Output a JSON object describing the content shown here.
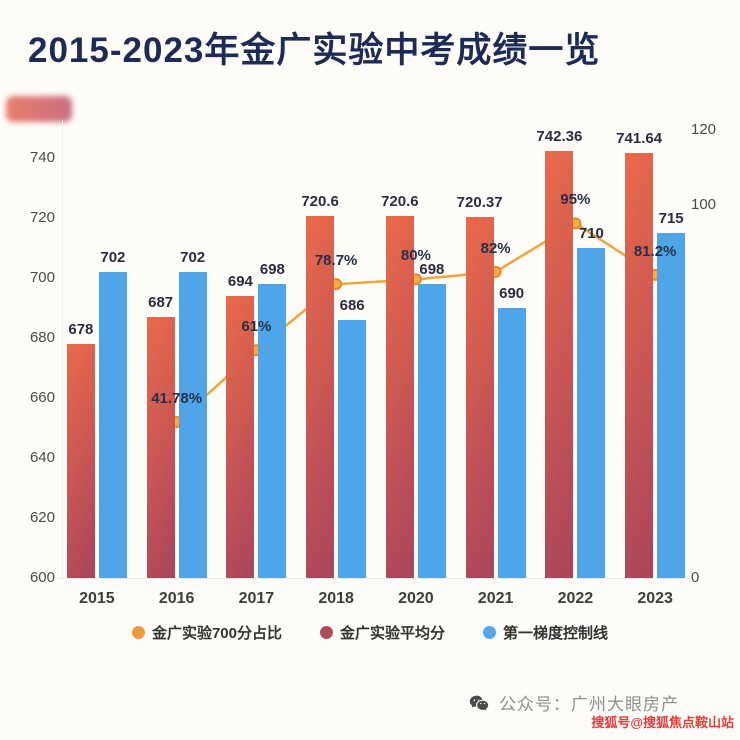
{
  "page": {
    "title": "2015-2023年金广实验中考成绩一览"
  },
  "chart_data": {
    "type": "bar+line",
    "title": "2015-2023年金广实验中考成绩一览",
    "categories": [
      "2015",
      "2016",
      "2017",
      "2018",
      "2020",
      "2021",
      "2022",
      "2023"
    ],
    "left_axis": {
      "min": 600,
      "max": 755,
      "ticks": [
        740,
        720,
        700,
        680,
        660,
        640,
        620,
        600
      ]
    },
    "right_axis": {
      "min": 0,
      "max": 120,
      "ticks_shown": [
        {
          "label": "120",
          "value": 120
        },
        {
          "label": "100",
          "value": 100
        },
        {
          "label": "0",
          "value": 0
        }
      ]
    },
    "grid": "off",
    "legend_position": "bottom",
    "series": [
      {
        "name": "金广实验平均分",
        "type": "bar",
        "slot": "left",
        "color_top": "#ea6a4b",
        "color_bottom": "#a8445c",
        "values": [
          678,
          687,
          694,
          720.6,
          720.6,
          720.37,
          742.36,
          741.64
        ],
        "labels": [
          "678",
          "687",
          "694",
          "720.6",
          "720.6",
          "720.37",
          "742.36",
          "741.64"
        ]
      },
      {
        "name": "第一梯度控制线",
        "type": "bar",
        "slot": "right",
        "color": "#4fa5e8",
        "values": [
          702,
          702,
          698,
          686,
          698,
          690,
          710,
          715
        ],
        "labels": [
          "702",
          "702",
          "698",
          "686",
          "698",
          "690",
          "710",
          "715"
        ]
      },
      {
        "name": "金广实验700分占比",
        "type": "line",
        "color": "#f0a43c",
        "point_fill": "#f6ae43",
        "point_stroke": "#e1882f",
        "values": [
          null,
          41.78,
          61,
          78.7,
          80,
          82,
          95,
          81.2
        ],
        "labels": [
          "",
          "41.78%",
          "61%",
          "78.7%",
          "80%",
          "82%",
          "95%",
          "81.2%"
        ]
      }
    ]
  },
  "legend": {
    "items": [
      {
        "label": "金广实验700分占比",
        "color": "#ec9a3e"
      },
      {
        "label": "金广实验平均分",
        "color": "#b14c59"
      },
      {
        "label": "第一梯度控制线",
        "color": "#55a8ea"
      }
    ]
  },
  "footer": {
    "account": "公众号：广州大眼房产"
  },
  "watermark": {
    "text": "搜狐号@搜狐焦点鞍山站",
    "color": "#e23d3d"
  }
}
